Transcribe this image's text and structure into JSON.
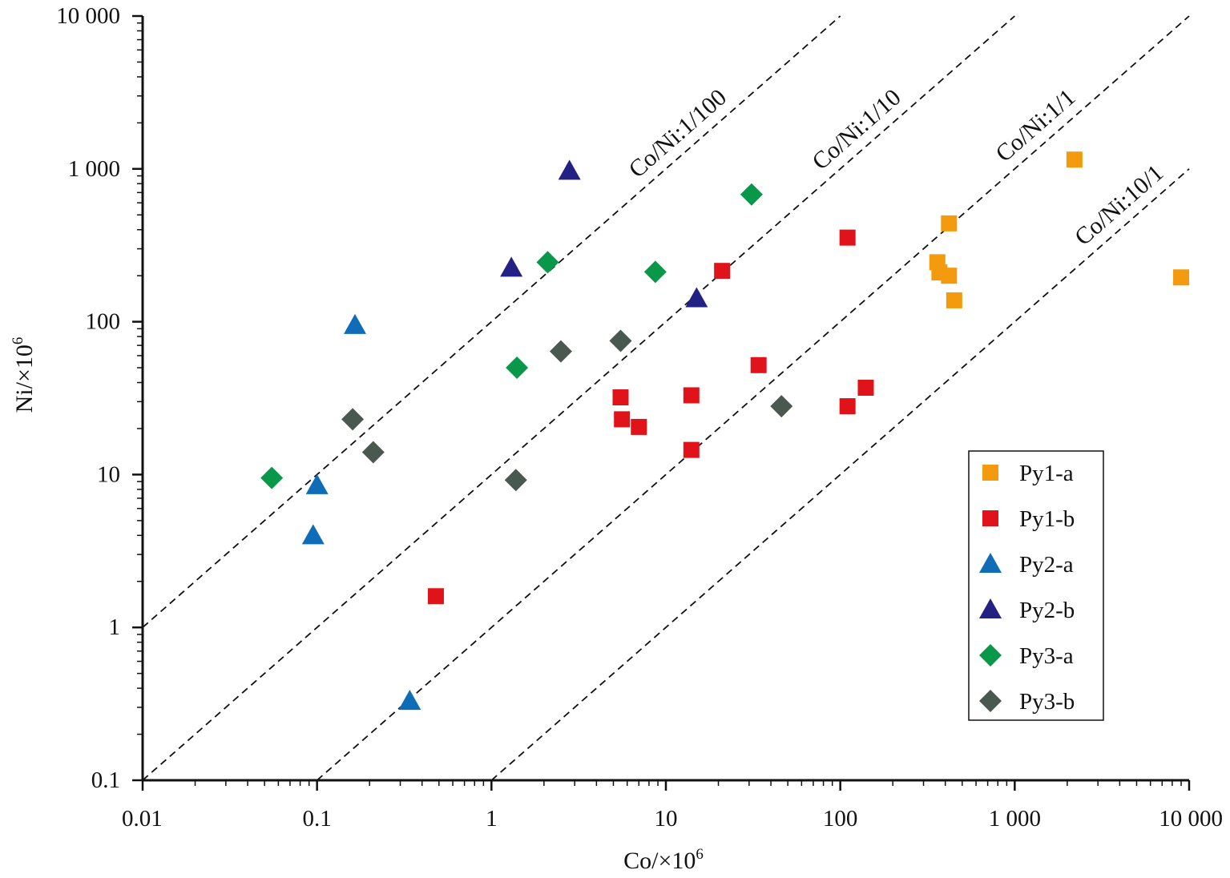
{
  "chart_data": {
    "type": "scatter",
    "xlabel_main": "Co/×10",
    "xlabel_sup": "6",
    "ylabel_main": "Ni/×10",
    "ylabel_sup": "6",
    "xscale": "log",
    "yscale": "log",
    "xlim": [
      0.01,
      10000
    ],
    "ylim": [
      0.1,
      10000
    ],
    "grid": false,
    "legend_position": "bottom-right",
    "x_ticks": [
      {
        "value": 0.01,
        "label": "0.01"
      },
      {
        "value": 0.1,
        "label": "0.1"
      },
      {
        "value": 1,
        "label": "1"
      },
      {
        "value": 10,
        "label": "10"
      },
      {
        "value": 100,
        "label": "100"
      },
      {
        "value": 1000,
        "label": "1 000"
      },
      {
        "value": 10000,
        "label": "10 000"
      }
    ],
    "y_ticks": [
      {
        "value": 0.1,
        "label": "0.1"
      },
      {
        "value": 1,
        "label": "1"
      },
      {
        "value": 10,
        "label": "10"
      },
      {
        "value": 100,
        "label": "100"
      },
      {
        "value": 1000,
        "label": "1 000"
      },
      {
        "value": 10000,
        "label": "10 000"
      }
    ],
    "reference_lines": [
      {
        "label": "Co/Ni:1/100",
        "ratio": 0.01,
        "label_x": 25
      },
      {
        "label": "Co/Ni:1/10",
        "ratio": 0.1,
        "label_x": 250
      },
      {
        "label": "Co/Ni:1/1",
        "ratio": 1,
        "label_x": 2500
      },
      {
        "label": "Co/Ni:10/1",
        "ratio": 10,
        "label_x": 8000
      }
    ],
    "series": [
      {
        "name": "Py1-a",
        "marker": "square",
        "color": "#F39A0F",
        "points": [
          [
            2200,
            1150
          ],
          [
            420,
            440
          ],
          [
            360,
            245
          ],
          [
            370,
            210
          ],
          [
            420,
            200
          ],
          [
            450,
            138
          ],
          [
            9000,
            195
          ]
        ]
      },
      {
        "name": "Py1-b",
        "marker": "square",
        "color": "#E0131A",
        "points": [
          [
            110,
            355
          ],
          [
            21,
            215
          ],
          [
            34,
            52
          ],
          [
            140,
            37
          ],
          [
            110,
            28
          ],
          [
            14,
            33
          ],
          [
            5.5,
            32
          ],
          [
            5.6,
            23
          ],
          [
            7,
            20.5
          ],
          [
            14,
            14.5
          ],
          [
            0.48,
            1.6
          ]
        ]
      },
      {
        "name": "Py2-a",
        "marker": "triangle",
        "color": "#0F6DB8",
        "points": [
          [
            0.165,
            95
          ],
          [
            0.1,
            8.5
          ],
          [
            0.095,
            4
          ],
          [
            0.34,
            0.33
          ]
        ]
      },
      {
        "name": "Py2-b",
        "marker": "triangle",
        "color": "#232284",
        "points": [
          [
            2.8,
            970
          ],
          [
            1.3,
            225
          ],
          [
            15,
            142
          ]
        ]
      },
      {
        "name": "Py3-a",
        "marker": "diamond",
        "color": "#09984A",
        "points": [
          [
            31,
            680
          ],
          [
            2.1,
            245
          ],
          [
            8.7,
            212
          ],
          [
            1.4,
            50
          ],
          [
            0.055,
            9.5
          ]
        ]
      },
      {
        "name": "Py3-b",
        "marker": "diamond",
        "color": "#4A5950",
        "points": [
          [
            5.5,
            75
          ],
          [
            2.5,
            64
          ],
          [
            46,
            28
          ],
          [
            0.16,
            23
          ],
          [
            0.21,
            14
          ],
          [
            1.38,
            9.2
          ]
        ]
      }
    ]
  }
}
